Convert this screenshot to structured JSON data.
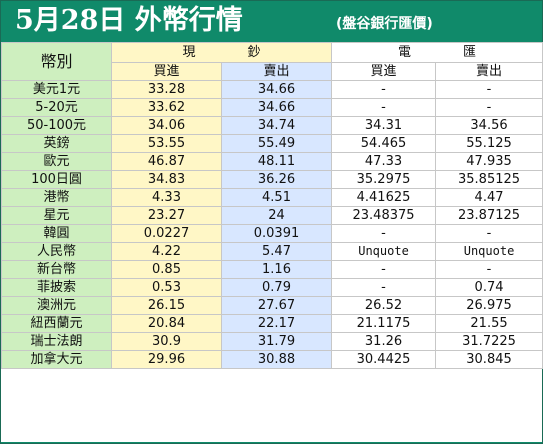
{
  "header": {
    "title": "5月28日 外幣行情",
    "source": "(盤谷銀行匯價)"
  },
  "table": {
    "currency_header": "幣別",
    "group_cash": "現　　　　鈔",
    "group_wire": "電　　　　匯",
    "buy_label": "買進",
    "sell_label": "賣出",
    "rows": [
      {
        "name": "美元1元",
        "cash_buy": "33.28",
        "cash_sell": "34.66",
        "wire_buy": "-",
        "wire_sell": "-"
      },
      {
        "name": "5-20元",
        "cash_buy": "33.62",
        "cash_sell": "34.66",
        "wire_buy": "-",
        "wire_sell": "-"
      },
      {
        "name": "50-100元",
        "cash_buy": "34.06",
        "cash_sell": "34.74",
        "wire_buy": "34.31",
        "wire_sell": "34.56"
      },
      {
        "name": "英鎊",
        "cash_buy": "53.55",
        "cash_sell": "55.49",
        "wire_buy": "54.465",
        "wire_sell": "55.125"
      },
      {
        "name": "歐元",
        "cash_buy": "46.87",
        "cash_sell": "48.11",
        "wire_buy": "47.33",
        "wire_sell": "47.935"
      },
      {
        "name": "100日圓",
        "cash_buy": "34.83",
        "cash_sell": "36.26",
        "wire_buy": "35.2975",
        "wire_sell": "35.85125"
      },
      {
        "name": "港幣",
        "cash_buy": "4.33",
        "cash_sell": "4.51",
        "wire_buy": "4.41625",
        "wire_sell": "4.47"
      },
      {
        "name": "星元",
        "cash_buy": "23.27",
        "cash_sell": "24",
        "wire_buy": "23.48375",
        "wire_sell": "23.87125"
      },
      {
        "name": "韓圓",
        "cash_buy": "0.0227",
        "cash_sell": "0.0391",
        "wire_buy": "-",
        "wire_sell": "-"
      },
      {
        "name": "人民幣",
        "cash_buy": "4.22",
        "cash_sell": "5.47",
        "wire_buy": "Unquote",
        "wire_sell": "Unquote"
      },
      {
        "name": "新台幣",
        "cash_buy": "0.85",
        "cash_sell": "1.16",
        "wire_buy": "-",
        "wire_sell": "-"
      },
      {
        "name": "菲披索",
        "cash_buy": "0.53",
        "cash_sell": "0.79",
        "wire_buy": "-",
        "wire_sell": "0.74"
      },
      {
        "name": "澳洲元",
        "cash_buy": "26.15",
        "cash_sell": "27.67",
        "wire_buy": "26.52",
        "wire_sell": "26.975"
      },
      {
        "name": "紐西蘭元",
        "cash_buy": "20.84",
        "cash_sell": "22.17",
        "wire_buy": "21.1175",
        "wire_sell": "21.55"
      },
      {
        "name": "瑞士法朗",
        "cash_buy": "30.9",
        "cash_sell": "31.79",
        "wire_buy": "31.26",
        "wire_sell": "31.7225"
      },
      {
        "name": "加拿大元",
        "cash_buy": "29.96",
        "cash_sell": "30.88",
        "wire_buy": "30.4425",
        "wire_sell": "30.845"
      }
    ]
  },
  "colors": {
    "header_bg": "#108a6a",
    "label_bg": "#ceefbf",
    "cash_buy_bg": "#fff7c6",
    "cash_sell_bg": "#d8e7ff",
    "wire_bg": "#ffffff"
  }
}
